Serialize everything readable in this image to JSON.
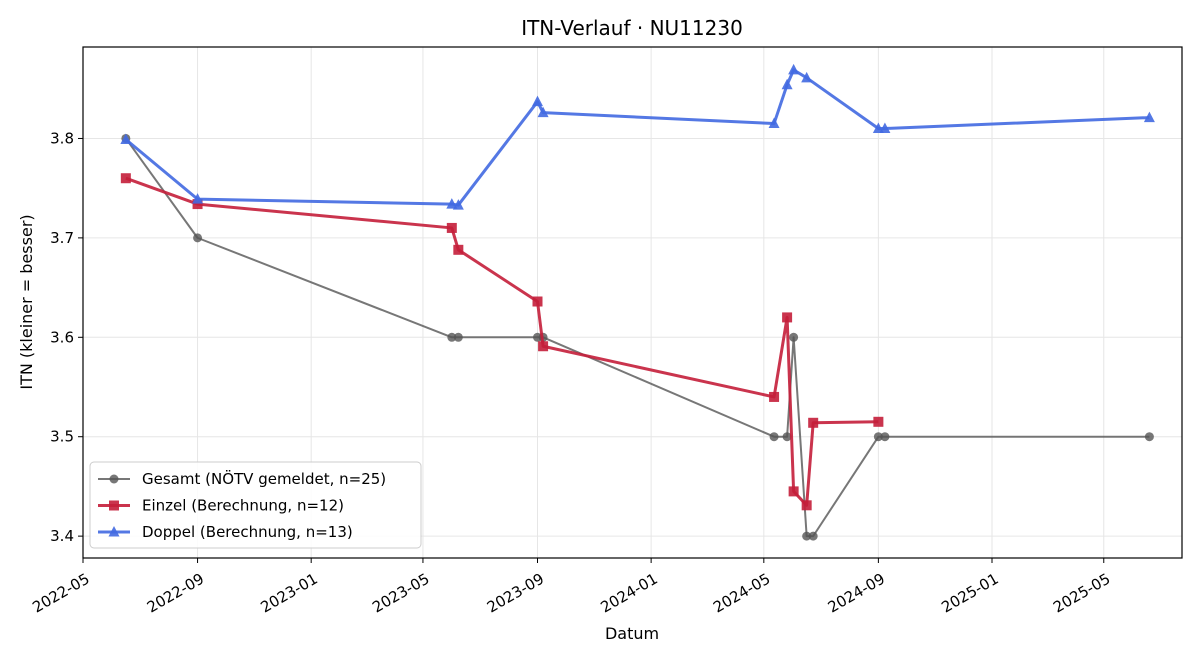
{
  "chart_data": {
    "type": "line",
    "title": "ITN-Verlauf · NU11230",
    "xlabel": "Datum",
    "ylabel": "ITN  (kleiner = besser)",
    "x_type": "date",
    "xlim": [
      "2022-05-01",
      "2025-07-24"
    ],
    "ylim": [
      3.378,
      3.892
    ],
    "x_ticks": [
      "2022-05",
      "2022-09",
      "2023-01",
      "2023-05",
      "2023-09",
      "2024-01",
      "2024-05",
      "2024-09",
      "2025-01",
      "2025-05"
    ],
    "y_ticks": [
      3.4,
      3.5,
      3.6,
      3.7,
      3.8
    ],
    "grid": true,
    "legend_position": "lower-left",
    "series": [
      {
        "name": "Gesamt (NÖTV gemeldet, n=25)",
        "color": "#555555",
        "marker": "circle",
        "points": [
          [
            "2022-06-16",
            3.8
          ],
          [
            "2022-09-01",
            3.7
          ],
          [
            "2023-06-01",
            3.6
          ],
          [
            "2023-06-08",
            3.6
          ],
          [
            "2023-09-01",
            3.6
          ],
          [
            "2023-09-07",
            3.6
          ],
          [
            "2024-05-12",
            3.5
          ],
          [
            "2024-05-26",
            3.5
          ],
          [
            "2024-06-02",
            3.6
          ],
          [
            "2024-06-16",
            3.4
          ],
          [
            "2024-06-23",
            3.4
          ],
          [
            "2024-09-01",
            3.5
          ],
          [
            "2024-09-08",
            3.5
          ],
          [
            "2025-06-19",
            3.5
          ]
        ]
      },
      {
        "name": "Einzel (Berechnung, n=12)",
        "color": "#c41e3a",
        "marker": "square",
        "points": [
          [
            "2022-06-16",
            3.76
          ],
          [
            "2022-09-01",
            3.734
          ],
          [
            "2023-06-01",
            3.71
          ],
          [
            "2023-06-08",
            3.688
          ],
          [
            "2023-09-01",
            3.636
          ],
          [
            "2023-09-07",
            3.591
          ],
          [
            "2024-05-12",
            3.54
          ],
          [
            "2024-05-26",
            3.62
          ],
          [
            "2024-06-02",
            3.445
          ],
          [
            "2024-06-16",
            3.431
          ],
          [
            "2024-06-23",
            3.514
          ],
          [
            "2024-09-01",
            3.515
          ]
        ]
      },
      {
        "name": "Doppel (Berechnung, n=13)",
        "color": "#4169e1",
        "marker": "triangle",
        "points": [
          [
            "2022-06-16",
            3.799
          ],
          [
            "2022-09-01",
            3.739
          ],
          [
            "2023-06-01",
            3.734
          ],
          [
            "2023-06-08",
            3.733
          ],
          [
            "2023-09-01",
            3.837
          ],
          [
            "2023-09-07",
            3.826
          ],
          [
            "2024-05-12",
            3.815
          ],
          [
            "2024-05-26",
            3.854
          ],
          [
            "2024-06-02",
            3.869
          ],
          [
            "2024-06-16",
            3.861
          ],
          [
            "2024-09-01",
            3.81
          ],
          [
            "2024-09-08",
            3.81
          ],
          [
            "2025-06-19",
            3.821
          ]
        ]
      }
    ]
  }
}
